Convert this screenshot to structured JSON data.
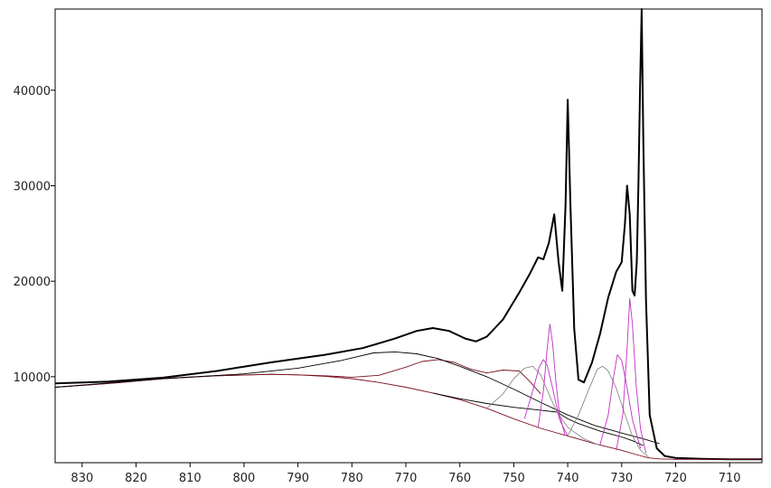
{
  "chart_data": {
    "type": "line",
    "title": "",
    "xlabel": "",
    "ylabel": "",
    "x_reversed": true,
    "xlim": [
      835,
      704
    ],
    "ylim": [
      1000,
      48500
    ],
    "x_ticks": [
      830,
      820,
      810,
      800,
      790,
      780,
      770,
      760,
      750,
      740,
      730,
      720,
      710
    ],
    "y_ticks": [
      10000,
      20000,
      30000,
      40000
    ],
    "grid": false,
    "legend": "none",
    "series": [
      {
        "role": "spectrum",
        "color": "#000000",
        "x": [
          835,
          825,
          815,
          805,
          795,
          785,
          778,
          772,
          768,
          765,
          762,
          759,
          757,
          755,
          752,
          749,
          747,
          745.5,
          744.5,
          743.5,
          742.5,
          741.7,
          741,
          740.4,
          740,
          739.5,
          738.8,
          738,
          737,
          735.5,
          734,
          732.5,
          731,
          730,
          729.4,
          729,
          728.5,
          728,
          727.6,
          727.2,
          726.9,
          726.6,
          726.3,
          726,
          725.5,
          724.8,
          723.5,
          722,
          720,
          715,
          710,
          704
        ],
        "y": [
          9300,
          9500,
          9900,
          10600,
          11500,
          12300,
          13000,
          14000,
          14800,
          15100,
          14800,
          14000,
          13700,
          14200,
          16000,
          18800,
          20800,
          22500,
          22300,
          24000,
          27000,
          22000,
          19000,
          28000,
          39000,
          28000,
          15000,
          9700,
          9400,
          11500,
          14500,
          18300,
          21000,
          22000,
          26000,
          30000,
          27000,
          19000,
          18500,
          22000,
          30000,
          40000,
          48500,
          35000,
          18000,
          6000,
          2500,
          1700,
          1500,
          1400,
          1350,
          1350
        ]
      },
      {
        "role": "background",
        "color": "#7a1020",
        "x": [
          835,
          825,
          815,
          805,
          795,
          790,
          785,
          780,
          775,
          770,
          765,
          760,
          755,
          750,
          745,
          740,
          735,
          730,
          727,
          725,
          723,
          720,
          715,
          710,
          704
        ],
        "y": [
          8900,
          9300,
          9800,
          10100,
          10250,
          10200,
          10050,
          9800,
          9400,
          8900,
          8300,
          7600,
          6700,
          5600,
          4600,
          3800,
          3000,
          2300,
          1800,
          1500,
          1400,
          1350,
          1350,
          1350,
          1350
        ]
      },
      {
        "role": "envelope",
        "color": "#7a1020",
        "x": [
          835,
          825,
          815,
          805,
          795,
          790,
          785,
          780,
          775,
          770,
          767,
          764,
          761,
          758,
          755,
          752,
          749,
          747,
          745
        ],
        "y": [
          8900,
          9300,
          9800,
          10100,
          10250,
          10200,
          10100,
          9950,
          10150,
          11000,
          11600,
          11800,
          11500,
          10800,
          10400,
          10700,
          10600,
          9500,
          8200
        ]
      },
      {
        "role": "component",
        "color": "#000000",
        "x": [
          835,
          815,
          800,
          790,
          782,
          776,
          772,
          768,
          764,
          760,
          755,
          750,
          745,
          740,
          735,
          730,
          726,
          723
        ],
        "y": [
          8900,
          9800,
          10300,
          10900,
          11700,
          12500,
          12600,
          12400,
          11900,
          11100,
          10000,
          8700,
          7300,
          6000,
          4900,
          4100,
          3500,
          3000
        ]
      },
      {
        "role": "component",
        "color": "#000000",
        "x": [
          765,
          760,
          755,
          750,
          745,
          742,
          740,
          738,
          736,
          734,
          732,
          730,
          728,
          726
        ],
        "y": [
          8300,
          7700,
          7200,
          6800,
          6500,
          6300,
          5600,
          5100,
          4700,
          4300,
          4000,
          3700,
          3300,
          2800
        ]
      },
      {
        "role": "component",
        "color": "#8a8a8a",
        "x": [
          755,
          752,
          750,
          748,
          746.5,
          745,
          743.5,
          742,
          740,
          737,
          734
        ],
        "y": [
          6700,
          8200,
          9800,
          10900,
          11100,
          10200,
          8200,
          6300,
          4700,
          3500,
          2800
        ]
      },
      {
        "role": "component",
        "color": "#8a8a8a",
        "x": [
          740,
          738,
          736,
          734.5,
          733.5,
          732.5,
          731,
          729.5,
          728,
          726.5,
          725
        ],
        "y": [
          3800,
          6000,
          8800,
          10800,
          11100,
          10600,
          8800,
          6200,
          3800,
          2300,
          1600
        ]
      },
      {
        "role": "component",
        "color": "#c030c0",
        "x": [
          748,
          746.5,
          745.3,
          744.5,
          743.8,
          742.8,
          741.5,
          740
        ],
        "y": [
          5600,
          8500,
          11000,
          11800,
          11200,
          8800,
          5500,
          3800
        ]
      },
      {
        "role": "component",
        "color": "#c030c0",
        "x": [
          745.5,
          744.5,
          743.8,
          743.3,
          742.8,
          742.2,
          741.5,
          740.5
        ],
        "y": [
          4700,
          8500,
          13000,
          15500,
          13500,
          9500,
          6000,
          3900
        ]
      },
      {
        "role": "component",
        "color": "#c030c0",
        "x": [
          734,
          732.5,
          731.5,
          730.8,
          730,
          729.2,
          728,
          726.5
        ],
        "y": [
          2900,
          6000,
          10000,
          12300,
          11700,
          9500,
          5500,
          2500
        ]
      },
      {
        "role": "component",
        "color": "#c030c0",
        "x": [
          731,
          729.8,
          729,
          728.5,
          728,
          727.3,
          726.5,
          725.5
        ],
        "y": [
          2300,
          6000,
          13000,
          18200,
          15500,
          9000,
          4500,
          2000
        ]
      }
    ]
  }
}
